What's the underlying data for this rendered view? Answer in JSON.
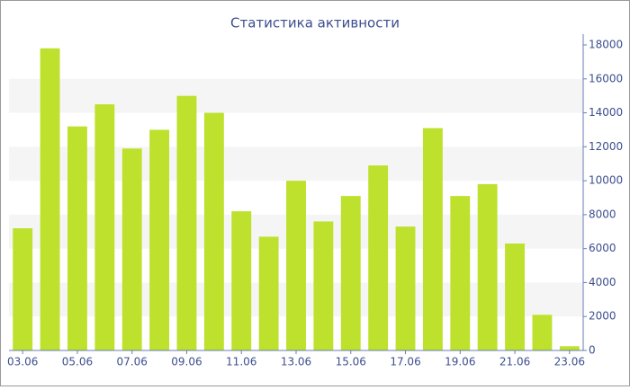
{
  "chart_data": {
    "type": "bar",
    "title": "Статистика активности",
    "categories": [
      "03.06",
      null,
      "05.06",
      null,
      "07.06",
      null,
      "09.06",
      null,
      "11.06",
      null,
      "13.06",
      null,
      "15.06",
      null,
      "17.06",
      null,
      "19.06",
      null,
      "21.06",
      null,
      "23.06"
    ],
    "values": [
      7200,
      17800,
      13200,
      14500,
      11900,
      13000,
      15000,
      14000,
      8200,
      6700,
      10000,
      7600,
      9100,
      10900,
      7300,
      13100,
      9100,
      9800,
      6300,
      2100,
      250
    ],
    "color": "#bde12d",
    "ylim": [
      0,
      18000
    ],
    "yticks": [
      0,
      2000,
      4000,
      6000,
      8000,
      10000,
      12000,
      14000,
      16000,
      18000
    ],
    "grid": true,
    "y_axis_side": "right"
  }
}
